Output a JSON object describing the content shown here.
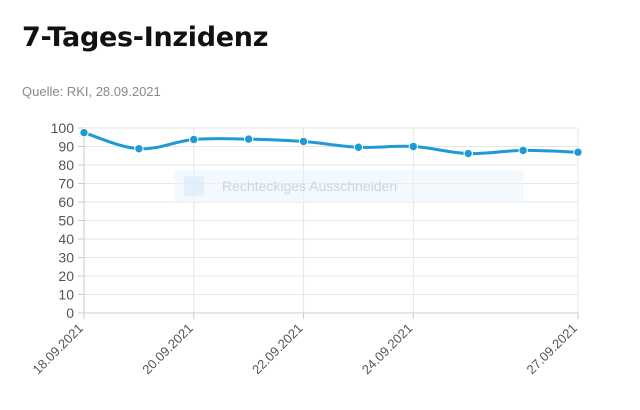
{
  "header": {
    "title": "7-Tages-Inzidenz",
    "source": "Quelle: RKI, 28.09.2021"
  },
  "overlay": {
    "label": "Rechteckiges Ausschneiden",
    "icon": "scissors-icon"
  },
  "chart_data": {
    "type": "line",
    "title": "",
    "xlabel": "",
    "ylabel": "",
    "x": [
      "18.09.2021",
      "19.09.2021",
      "20.09.2021",
      "21.09.2021",
      "22.09.2021",
      "23.09.2021",
      "24.09.2021",
      "25.09.2021",
      "26.09.2021",
      "27.09.2021"
    ],
    "x_tick_labels": [
      "18.09.2021",
      "20.09.2021",
      "22.09.2021",
      "24.09.2021",
      "27.09.2021"
    ],
    "series": [
      {
        "values": [
          97.5,
          88.8,
          93.8,
          94.0,
          92.7,
          89.6,
          90.0,
          86.2,
          87.9,
          86.9
        ],
        "color": "#1e9ad6"
      }
    ],
    "ylim": [
      0,
      100
    ],
    "yticks": [
      0,
      10,
      20,
      30,
      40,
      50,
      60,
      70,
      80,
      90,
      100
    ],
    "grid": true,
    "legend": "none"
  }
}
